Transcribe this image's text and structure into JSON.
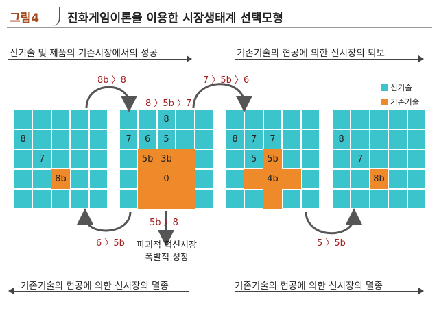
{
  "header": {
    "figure_label": "그림4",
    "title": "진화게임이론을 이용한 시장생태계 선택모형"
  },
  "phases": {
    "top_left": "신기술 및 제품의 기존시장에서의 성공",
    "top_right": "기존기술의 협공에 의한 신시장의 퇴보",
    "bottom_left": "기존기술의 협공에 의한 신시장의 멸종",
    "bottom_right": "기존기술의 협공에 의한 신시장의 멸종"
  },
  "legend": [
    {
      "label": "신기술",
      "color": "#3cc4cc"
    },
    {
      "label": "기존기술",
      "color": "#ef8a2a"
    }
  ],
  "colors": {
    "new_tech": "#3cc4cc",
    "old_tech": "#ef8a2a",
    "relation": "#a32020"
  },
  "relations": {
    "g1_to_g2": "8b 〉8",
    "g2_top": "8 〉5b 〉7",
    "g2_to_g3": "7 〉5b 〉6",
    "g2_down": "5b 〉8",
    "g2_to_g1": "6 〉5b",
    "g3_to_g4": "5 〉5b"
  },
  "outcome": {
    "line1": "파괴적 혁신시장",
    "line2": "폭발적 성장"
  },
  "grids": [
    {
      "rows": [
        [
          "n",
          "n",
          "n",
          "n",
          "n"
        ],
        [
          "n:8",
          "n",
          "n",
          "n",
          "n"
        ],
        [
          "n",
          "n:7",
          "n",
          "n",
          "n"
        ],
        [
          "n",
          "n",
          "o:8b",
          "n",
          "n"
        ],
        [
          "n",
          "n",
          "n",
          "n",
          "n"
        ]
      ]
    },
    {
      "rows": [
        [
          "n",
          "n",
          "n:8",
          "n",
          "n"
        ],
        [
          "n:7",
          "n:6",
          "n:5",
          "n",
          "n"
        ],
        [
          "n",
          "o:5b",
          "o:3b",
          "o",
          "n"
        ],
        [
          "n",
          "o",
          "o:0",
          "o",
          "n"
        ],
        [
          "n",
          "o",
          "o",
          "o",
          "n"
        ]
      ]
    },
    {
      "rows": [
        [
          "n",
          "n",
          "n",
          "n",
          "n"
        ],
        [
          "n:8",
          "n:7",
          "n:7",
          "n",
          "n"
        ],
        [
          "n",
          "n:5",
          "o:5b",
          "n",
          "n"
        ],
        [
          "n",
          "o",
          "o:4b",
          "o",
          "n"
        ],
        [
          "n",
          "n",
          "o",
          "n",
          "n"
        ]
      ]
    },
    {
      "rows": [
        [
          "n",
          "n",
          "n",
          "n",
          "n"
        ],
        [
          "n:8",
          "n",
          "n",
          "n",
          "n"
        ],
        [
          "n",
          "n:7",
          "n",
          "n",
          "n"
        ],
        [
          "n",
          "n",
          "o:8b",
          "n",
          "n"
        ],
        [
          "n",
          "n",
          "n",
          "n",
          "n"
        ]
      ]
    }
  ]
}
